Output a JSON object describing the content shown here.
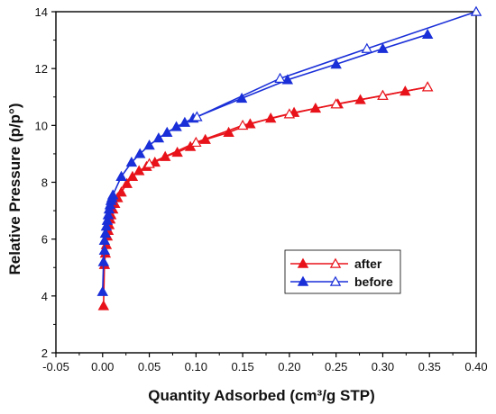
{
  "chart_data": {
    "type": "line",
    "xlabel": "Quantity Adsorbed (cm³/g STP)",
    "ylabel": "Relative Pressure (p/p°)",
    "xlim": [
      -0.05,
      0.4
    ],
    "ylim": [
      2,
      14
    ],
    "xticks": [
      -0.05,
      0.0,
      0.05,
      0.1,
      0.15,
      0.2,
      0.25,
      0.3,
      0.35,
      0.4
    ],
    "xtick_labels": [
      "-0.05",
      "0.00",
      "0.05",
      "0.10",
      "0.15",
      "0.20",
      "0.25",
      "0.30",
      "0.35",
      "0.40"
    ],
    "yticks": [
      2,
      4,
      6,
      8,
      10,
      12,
      14
    ],
    "ytick_labels": [
      "2",
      "4",
      "6",
      "8",
      "10",
      "12",
      "14"
    ],
    "legend_position": "lower-right",
    "series": [
      {
        "name": "after",
        "color": "#e8131a",
        "adsorption": {
          "x": [
            0.001,
            0.002,
            0.003,
            0.004,
            0.005,
            0.006,
            0.007,
            0.008,
            0.009,
            0.011,
            0.013,
            0.016,
            0.02,
            0.026,
            0.032,
            0.039,
            0.047,
            0.056,
            0.067,
            0.08,
            0.094,
            0.11,
            0.135,
            0.158,
            0.18,
            0.205,
            0.228,
            0.252,
            0.276,
            0.3,
            0.324,
            0.348
          ],
          "y": [
            3.65,
            5.1,
            5.5,
            5.8,
            6.1,
            6.3,
            6.5,
            6.7,
            6.85,
            7.05,
            7.25,
            7.45,
            7.65,
            7.95,
            8.2,
            8.4,
            8.55,
            8.7,
            8.9,
            9.05,
            9.25,
            9.5,
            9.75,
            10.05,
            10.25,
            10.45,
            10.6,
            10.75,
            10.9,
            11.05,
            11.2,
            11.35
          ]
        },
        "desorption": {
          "x": [
            0.348,
            0.3,
            0.25,
            0.2,
            0.15,
            0.1,
            0.05
          ],
          "y": [
            11.35,
            11.05,
            10.75,
            10.4,
            10.0,
            9.4,
            8.65
          ]
        }
      },
      {
        "name": "before",
        "color": "#1a2fd8",
        "adsorption": {
          "x": [
            0.0,
            0.001,
            0.002,
            0.002,
            0.003,
            0.004,
            0.005,
            0.006,
            0.007,
            0.008,
            0.009,
            0.01,
            0.011,
            0.02,
            0.031,
            0.04,
            0.05,
            0.06,
            0.069,
            0.079,
            0.088,
            0.097,
            0.149,
            0.198,
            0.25,
            0.3,
            0.348
          ],
          "y": [
            4.15,
            5.2,
            5.6,
            5.95,
            6.2,
            6.45,
            6.65,
            6.85,
            7.05,
            7.2,
            7.35,
            7.45,
            7.55,
            8.2,
            8.7,
            9.0,
            9.3,
            9.55,
            9.75,
            9.95,
            10.1,
            10.25,
            10.95,
            11.6,
            12.15,
            12.7,
            13.2
          ]
        },
        "desorption": {
          "x": [
            0.4,
            0.283,
            0.19,
            0.101
          ],
          "y": [
            14.0,
            12.7,
            11.65,
            10.3
          ]
        }
      }
    ],
    "legend": {
      "entries": [
        "after",
        "before"
      ]
    }
  }
}
